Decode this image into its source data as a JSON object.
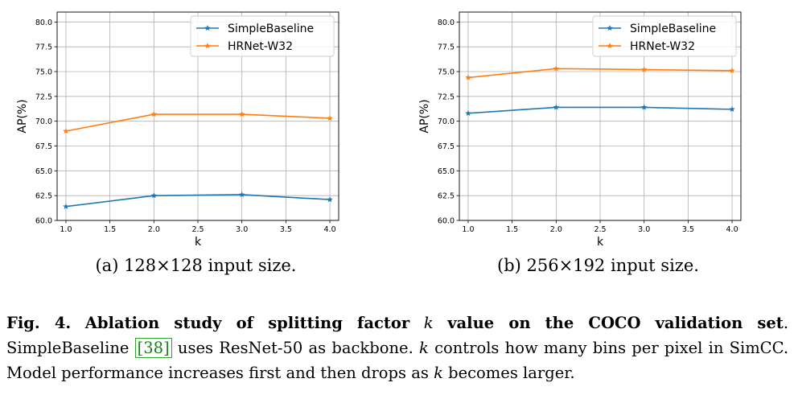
{
  "chart_data": [
    {
      "type": "line",
      "title": "",
      "subcaption": "(a) 128×128 input size.",
      "xlabel": "k",
      "ylabel": "AP(%)",
      "x": [
        1.0,
        2.0,
        3.0,
        4.0
      ],
      "xlim": [
        0.9,
        4.1
      ],
      "ylim": [
        60.0,
        81.0
      ],
      "xticks": [
        "1.0",
        "1.5",
        "2.0",
        "2.5",
        "3.0",
        "3.5",
        "4.0"
      ],
      "yticks": [
        "60.0",
        "62.5",
        "65.0",
        "67.5",
        "70.0",
        "72.5",
        "75.0",
        "77.5",
        "80.0"
      ],
      "grid": true,
      "legend_position": "top-right",
      "series": [
        {
          "name": "SimpleBaseline",
          "color": "#1f77b4",
          "values": [
            61.4,
            62.5,
            62.6,
            62.1
          ]
        },
        {
          "name": "HRNet-W32",
          "color": "#ff7f0e",
          "values": [
            69.0,
            70.7,
            70.7,
            70.3
          ]
        }
      ]
    },
    {
      "type": "line",
      "title": "",
      "subcaption": "(b) 256×192 input size.",
      "xlabel": "k",
      "ylabel": "AP(%)",
      "x": [
        1.0,
        2.0,
        3.0,
        4.0
      ],
      "xlim": [
        0.9,
        4.1
      ],
      "ylim": [
        60.0,
        81.0
      ],
      "xticks": [
        "1.0",
        "1.5",
        "2.0",
        "2.5",
        "3.0",
        "3.5",
        "4.0"
      ],
      "yticks": [
        "60.0",
        "62.5",
        "65.0",
        "67.5",
        "70.0",
        "72.5",
        "75.0",
        "77.5",
        "80.0"
      ],
      "grid": true,
      "legend_position": "top-right",
      "series": [
        {
          "name": "SimpleBaseline",
          "color": "#1f77b4",
          "values": [
            70.8,
            71.4,
            71.4,
            71.2
          ]
        },
        {
          "name": "HRNet-W32",
          "color": "#ff7f0e",
          "values": [
            74.4,
            75.3,
            75.2,
            75.1
          ]
        }
      ]
    }
  ],
  "caption": {
    "fig_label": "Fig. 4.",
    "bold_text_1": "Ablation study of splitting factor",
    "k_symbol": "k",
    "bold_text_2": "value on the COCO validation set",
    "text_1": ". SimpleBaseline",
    "ref": "[38]",
    "text_2": "uses ResNet-50 as backbone.",
    "text_3": "controls how many bins per pixel in SimCC. Model performance increases first and then drops as",
    "text_4": "becomes larger."
  }
}
